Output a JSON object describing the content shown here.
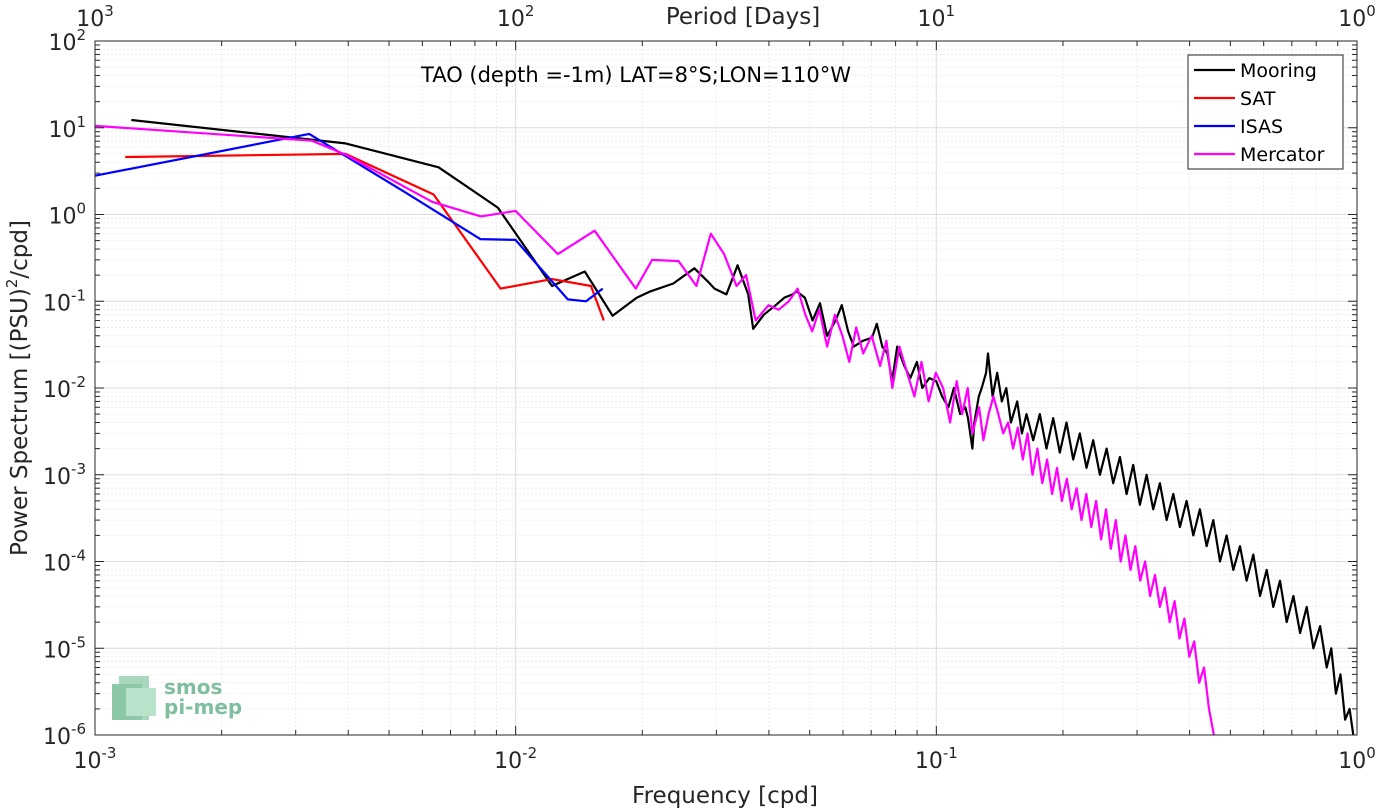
{
  "chart_data": {
    "type": "line",
    "title": "TAO (depth =-1m) LAT=8°S;LON=110°W",
    "xlabel": "Frequency [cpd]",
    "x2label": "Period [Days]",
    "ylabel_parts": [
      "Power Spectrum [(PSU)",
      "2",
      "/cpd]"
    ],
    "x_scale": "log",
    "y_scale": "log",
    "xlim": [
      0.001,
      1
    ],
    "ylim": [
      1e-06,
      100
    ],
    "grid": true,
    "legend_position": "top-right",
    "x_ticks": [
      {
        "base": "10",
        "exp": "-3"
      },
      {
        "base": "10",
        "exp": "-2"
      },
      {
        "base": "10",
        "exp": "-1"
      },
      {
        "base": "10",
        "exp": "0"
      }
    ],
    "x2_ticks": [
      {
        "base": "10",
        "exp": "3"
      },
      {
        "base": "10",
        "exp": "2"
      },
      {
        "base": "10",
        "exp": "1"
      },
      {
        "base": "10",
        "exp": "0"
      }
    ],
    "y_ticks": [
      {
        "base": "10",
        "exp": "2"
      },
      {
        "base": "10",
        "exp": "1"
      },
      {
        "base": "10",
        "exp": "0"
      },
      {
        "base": "10",
        "exp": "-1"
      },
      {
        "base": "10",
        "exp": "-2"
      },
      {
        "base": "10",
        "exp": "-3"
      },
      {
        "base": "10",
        "exp": "-4"
      },
      {
        "base": "10",
        "exp": "-5"
      },
      {
        "base": "10",
        "exp": "-6"
      }
    ],
    "series": [
      {
        "name": "Mooring",
        "color": "#000000",
        "points": [
          [
            0.00122,
            12.3
          ],
          [
            0.00394,
            6.6
          ],
          [
            0.00656,
            3.5
          ],
          [
            0.00907,
            1.2
          ],
          [
            0.0122,
            0.15
          ],
          [
            0.0146,
            0.22
          ],
          [
            0.017,
            0.068
          ],
          [
            0.0194,
            0.11
          ],
          [
            0.0209,
            0.13
          ],
          [
            0.0237,
            0.16
          ],
          [
            0.0266,
            0.24
          ],
          [
            0.0286,
            0.17
          ],
          [
            0.0297,
            0.14
          ],
          [
            0.0317,
            0.12
          ],
          [
            0.0337,
            0.26
          ],
          [
            0.0357,
            0.12
          ],
          [
            0.0367,
            0.048
          ],
          [
            0.0389,
            0.07
          ],
          [
            0.0415,
            0.09
          ],
          [
            0.0435,
            0.11
          ],
          [
            0.0455,
            0.12
          ],
          [
            0.0466,
            0.13
          ],
          [
            0.0487,
            0.11
          ],
          [
            0.0508,
            0.06
          ],
          [
            0.0529,
            0.095
          ],
          [
            0.055,
            0.04
          ],
          [
            0.0576,
            0.06
          ],
          [
            0.0596,
            0.09
          ],
          [
            0.0617,
            0.045
          ],
          [
            0.0637,
            0.03
          ],
          [
            0.0669,
            0.035
          ],
          [
            0.0703,
            0.038
          ],
          [
            0.0722,
            0.055
          ],
          [
            0.0744,
            0.03
          ],
          [
            0.0765,
            0.025
          ],
          [
            0.0785,
            0.012
          ],
          [
            0.0807,
            0.03
          ],
          [
            0.0839,
            0.018
          ],
          [
            0.0867,
            0.013
          ],
          [
            0.0899,
            0.02
          ],
          [
            0.0926,
            0.01
          ],
          [
            0.0962,
            0.013
          ],
          [
            0.0999,
            0.012
          ],
          [
            0.1032,
            0.008
          ],
          [
            0.1068,
            0.006
          ],
          [
            0.1101,
            0.01
          ],
          [
            0.1139,
            0.005
          ],
          [
            0.1172,
            0.006
          ],
          [
            0.1189,
            0.0045
          ],
          [
            0.1218,
            0.002
          ],
          [
            0.1231,
            0.004
          ],
          [
            0.1262,
            0.008
          ],
          [
            0.1282,
            0.01
          ],
          [
            0.1313,
            0.015
          ],
          [
            0.1327,
            0.025
          ],
          [
            0.1361,
            0.008
          ],
          [
            0.1395,
            0.015
          ],
          [
            0.1431,
            0.007
          ],
          [
            0.1467,
            0.01
          ],
          [
            0.1504,
            0.004
          ],
          [
            0.1557,
            0.007
          ],
          [
            0.1597,
            0.003
          ],
          [
            0.1638,
            0.005
          ],
          [
            0.1699,
            0.0025
          ],
          [
            0.1762,
            0.005
          ],
          [
            0.1828,
            0.002
          ],
          [
            0.1896,
            0.0045
          ],
          [
            0.1966,
            0.0018
          ],
          [
            0.2039,
            0.004
          ],
          [
            0.2115,
            0.0015
          ],
          [
            0.2193,
            0.003
          ],
          [
            0.2275,
            0.0012
          ],
          [
            0.236,
            0.0025
          ],
          [
            0.2448,
            0.001
          ],
          [
            0.2539,
            0.002
          ],
          [
            0.2633,
            0.0008
          ],
          [
            0.2731,
            0.0016
          ],
          [
            0.2833,
            0.0006
          ],
          [
            0.2938,
            0.0013
          ],
          [
            0.3047,
            0.00045
          ],
          [
            0.3161,
            0.001
          ],
          [
            0.3278,
            0.0004
          ],
          [
            0.34,
            0.0008
          ],
          [
            0.3527,
            0.0003
          ],
          [
            0.3658,
            0.0006
          ],
          [
            0.3794,
            0.00025
          ],
          [
            0.3935,
            0.0005
          ],
          [
            0.4082,
            0.0002
          ],
          [
            0.4233,
            0.0004
          ],
          [
            0.4391,
            0.00015
          ],
          [
            0.4554,
            0.0003
          ],
          [
            0.4723,
            0.0001
          ],
          [
            0.4899,
            0.0002
          ],
          [
            0.5081,
            8e-05
          ],
          [
            0.527,
            0.00015
          ],
          [
            0.5466,
            6e-05
          ],
          [
            0.567,
            0.00012
          ],
          [
            0.5881,
            4e-05
          ],
          [
            0.6099,
            8e-05
          ],
          [
            0.6326,
            3e-05
          ],
          [
            0.6562,
            6e-05
          ],
          [
            0.6806,
            2e-05
          ],
          [
            0.7059,
            4e-05
          ],
          [
            0.7322,
            1.5e-05
          ],
          [
            0.7594,
            3e-05
          ],
          [
            0.7877,
            1e-05
          ],
          [
            0.817,
            1.8e-05
          ],
          [
            0.8474,
            6e-06
          ],
          [
            0.8689,
            1e-05
          ],
          [
            0.8909,
            3e-06
          ],
          [
            0.9135,
            5e-06
          ],
          [
            0.9367,
            1.5e-06
          ],
          [
            0.9604,
            2e-06
          ],
          [
            0.98,
            1e-06
          ]
        ]
      },
      {
        "name": "SAT",
        "color": "#ff0000",
        "points": [
          [
            0.00118,
            4.6
          ],
          [
            0.00394,
            5.0
          ],
          [
            0.00638,
            1.7
          ],
          [
            0.00921,
            0.14
          ],
          [
            0.0122,
            0.18
          ],
          [
            0.0151,
            0.15
          ],
          [
            0.0162,
            0.06
          ]
        ]
      },
      {
        "name": "ISAS",
        "color": "#0000ff",
        "points": [
          [
            0.001,
            2.8
          ],
          [
            0.00323,
            8.5
          ],
          [
            0.00547,
            1.8
          ],
          [
            0.00824,
            0.52
          ],
          [
            0.00999,
            0.51
          ],
          [
            0.0133,
            0.105
          ],
          [
            0.0147,
            0.1
          ],
          [
            0.0161,
            0.14
          ]
        ]
      },
      {
        "name": "Mercator",
        "color": "#ff00ff",
        "points": [
          [
            0.001,
            10.5
          ],
          [
            0.00328,
            7.1
          ],
          [
            0.00394,
            4.9
          ],
          [
            0.00633,
            1.4
          ],
          [
            0.00827,
            0.95
          ],
          [
            0.00999,
            1.1
          ],
          [
            0.0126,
            0.35
          ],
          [
            0.0154,
            0.65
          ],
          [
            0.0193,
            0.14
          ],
          [
            0.0211,
            0.3
          ],
          [
            0.0244,
            0.29
          ],
          [
            0.0269,
            0.15
          ],
          [
            0.0291,
            0.6
          ],
          [
            0.0313,
            0.35
          ],
          [
            0.0335,
            0.15
          ],
          [
            0.0353,
            0.2
          ],
          [
            0.0372,
            0.06
          ],
          [
            0.0399,
            0.09
          ],
          [
            0.0422,
            0.08
          ],
          [
            0.0446,
            0.1
          ],
          [
            0.0468,
            0.14
          ],
          [
            0.0488,
            0.07
          ],
          [
            0.0507,
            0.045
          ],
          [
            0.0527,
            0.08
          ],
          [
            0.055,
            0.03
          ],
          [
            0.0574,
            0.07
          ],
          [
            0.0598,
            0.04
          ],
          [
            0.0621,
            0.02
          ],
          [
            0.0645,
            0.05
          ],
          [
            0.067,
            0.025
          ],
          [
            0.0702,
            0.04
          ],
          [
            0.0735,
            0.018
          ],
          [
            0.0761,
            0.035
          ],
          [
            0.0786,
            0.01
          ],
          [
            0.0817,
            0.03
          ],
          [
            0.0852,
            0.015
          ],
          [
            0.0887,
            0.008
          ],
          [
            0.0922,
            0.02
          ],
          [
            0.0959,
            0.007
          ],
          [
            0.0997,
            0.015
          ],
          [
            0.1038,
            0.01
          ],
          [
            0.1078,
            0.004
          ],
          [
            0.1118,
            0.012
          ],
          [
            0.1152,
            0.005
          ],
          [
            0.1187,
            0.01
          ],
          [
            0.1219,
            0.003
          ],
          [
            0.1264,
            0.006
          ],
          [
            0.1294,
            0.0025
          ],
          [
            0.1331,
            0.005
          ],
          [
            0.1367,
            0.008
          ],
          [
            0.1404,
            0.005
          ],
          [
            0.1442,
            0.003
          ],
          [
            0.1481,
            0.004
          ],
          [
            0.1522,
            0.002
          ],
          [
            0.1562,
            0.0035
          ],
          [
            0.1605,
            0.0015
          ],
          [
            0.1648,
            0.003
          ],
          [
            0.1693,
            0.001
          ],
          [
            0.1739,
            0.002
          ],
          [
            0.1786,
            0.0008
          ],
          [
            0.1834,
            0.0015
          ],
          [
            0.1884,
            0.0006
          ],
          [
            0.1936,
            0.0012
          ],
          [
            0.1988,
            0.0005
          ],
          [
            0.2042,
            0.0009
          ],
          [
            0.2098,
            0.0004
          ],
          [
            0.2155,
            0.0007
          ],
          [
            0.2213,
            0.0003
          ],
          [
            0.2273,
            0.0006
          ],
          [
            0.2335,
            0.00025
          ],
          [
            0.2398,
            0.0005
          ],
          [
            0.2464,
            0.00018
          ],
          [
            0.2531,
            0.0004
          ],
          [
            0.2599,
            0.00014
          ],
          [
            0.267,
            0.0003
          ],
          [
            0.2743,
            0.0001
          ],
          [
            0.2817,
            0.0002
          ],
          [
            0.2894,
            8e-05
          ],
          [
            0.2972,
            0.00015
          ],
          [
            0.3053,
            6e-05
          ],
          [
            0.3136,
            0.0001
          ],
          [
            0.3222,
            4e-05
          ],
          [
            0.3309,
            7e-05
          ],
          [
            0.34,
            3e-05
          ],
          [
            0.3492,
            5e-05
          ],
          [
            0.3587,
            2e-05
          ],
          [
            0.3685,
            3.5e-05
          ],
          [
            0.3785,
            1.3e-05
          ],
          [
            0.3888,
            2.2e-05
          ],
          [
            0.3994,
            8e-06
          ],
          [
            0.4103,
            1.2e-05
          ],
          [
            0.4215,
            4e-06
          ],
          [
            0.4329,
            6e-06
          ],
          [
            0.4447,
            2e-06
          ],
          [
            0.4568,
            1e-06
          ]
        ]
      }
    ]
  },
  "logo": {
    "line1": "smos",
    "line2": "pi-mep"
  }
}
